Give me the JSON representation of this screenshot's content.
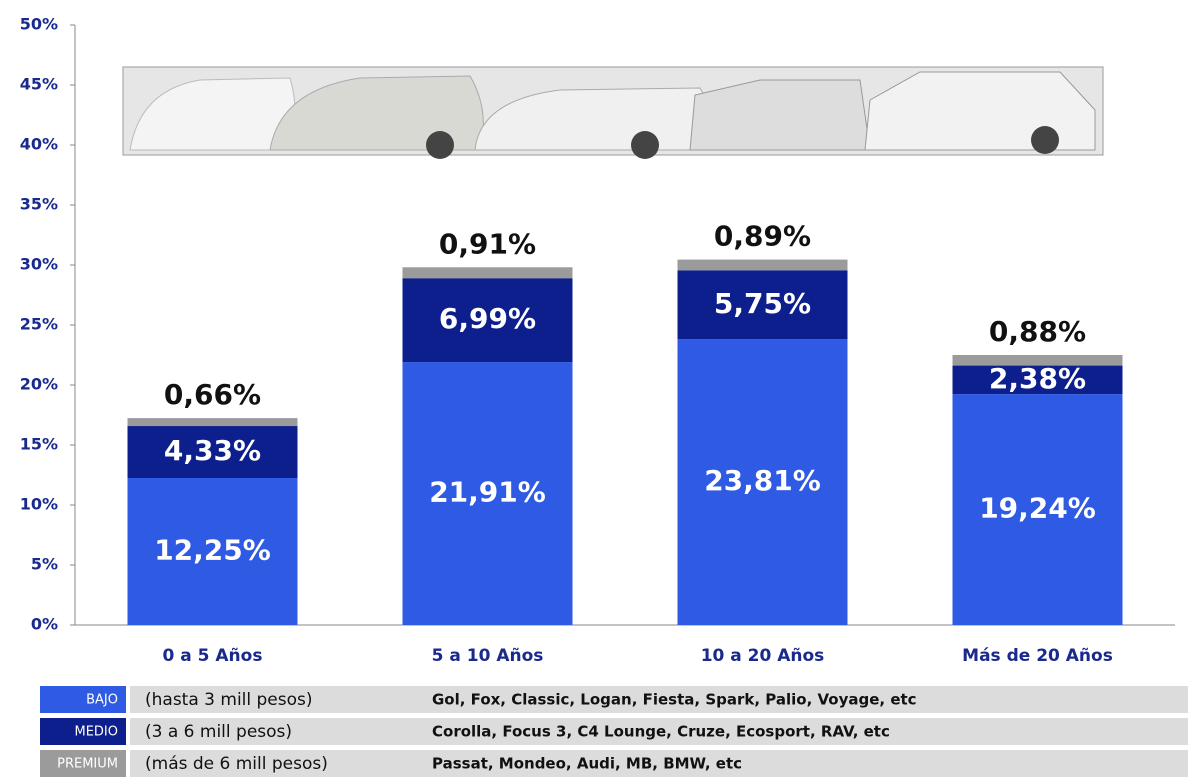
{
  "chart_data": {
    "type": "bar",
    "stacked": true,
    "categories": [
      "0 a 5 Años",
      "5 a 10 Años",
      "10 a 20 Años",
      "Más de 20 Años"
    ],
    "series": [
      {
        "name": "BAJO",
        "color": "#2f5be4",
        "values": [
          12.25,
          21.91,
          23.81,
          19.24
        ],
        "value_labels": [
          "12,25%",
          "21,91%",
          "23,81%",
          "19,24%"
        ],
        "description": "(hasta 3 mill pesos)",
        "examples": "Gol, Fox, Classic, Logan, Fiesta, Spark, Palio, Voyage, etc"
      },
      {
        "name": "MEDIO",
        "color": "#0c1f8c",
        "values": [
          4.33,
          6.99,
          5.75,
          2.38
        ],
        "value_labels": [
          "4,33%",
          "6,99%",
          "5,75%",
          "2,38%"
        ],
        "description": "(3 a 6 mill pesos)",
        "examples": "Corolla, Focus 3, C4 Lounge, Cruze, Ecosport, RAV, etc"
      },
      {
        "name": "PREMIUM",
        "color": "#9b9b9b",
        "values": [
          0.66,
          0.91,
          0.89,
          0.88
        ],
        "value_labels": [
          "0,66%",
          "0,91%",
          "0,89%",
          "0,88%"
        ],
        "description": "(más de 6 mill pesos)",
        "examples": "Passat, Mondeo, Audi, MB, BMW, etc"
      }
    ],
    "ylim": [
      0,
      50
    ],
    "yticks": [
      {
        "value": 0,
        "label": "0%"
      },
      {
        "value": 5,
        "label": "5%"
      },
      {
        "value": 10,
        "label": "10%"
      },
      {
        "value": 15,
        "label": "15%"
      },
      {
        "value": 20,
        "label": "20%"
      },
      {
        "value": 25,
        "label": "25%"
      },
      {
        "value": 30,
        "label": "30%"
      },
      {
        "value": 35,
        "label": "35%"
      },
      {
        "value": 40,
        "label": "40%"
      },
      {
        "value": 45,
        "label": "45%"
      },
      {
        "value": 50,
        "label": "50%"
      }
    ]
  }
}
